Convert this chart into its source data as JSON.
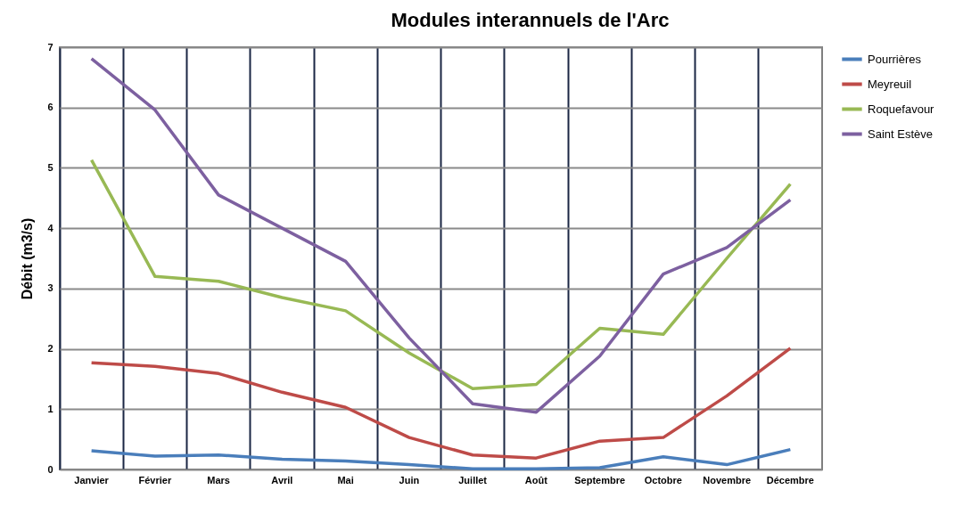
{
  "chart_data": {
    "type": "line",
    "title": "Modules interannuels de l'Arc",
    "ylabel": "Débit (m3/s)",
    "categories": [
      "Janvier",
      "Février",
      "Mars",
      "Avril",
      "Mai",
      "Juin",
      "Juillet",
      "Août",
      "Septembre",
      "Octobre",
      "Novembre",
      "Décembre"
    ],
    "series": [
      {
        "name": "Pourrières",
        "color": "#4a7ebb",
        "values": [
          0.31,
          0.22,
          0.24,
          0.17,
          0.14,
          0.08,
          0.01,
          0.01,
          0.03,
          0.21,
          0.08,
          0.33
        ]
      },
      {
        "name": "Meyreuil",
        "color": "#be4b48",
        "values": [
          1.77,
          1.71,
          1.59,
          1.28,
          1.03,
          0.53,
          0.24,
          0.19,
          0.47,
          0.53,
          1.22,
          2.01
        ]
      },
      {
        "name": "Roquefavour",
        "color": "#98b954",
        "values": [
          5.13,
          3.2,
          3.12,
          2.85,
          2.63,
          1.93,
          1.34,
          1.41,
          2.34,
          2.24,
          3.5,
          4.73
        ]
      },
      {
        "name": "Saint Estève",
        "color": "#7d60a0",
        "values": [
          6.81,
          5.96,
          4.55,
          4.0,
          3.45,
          2.18,
          1.09,
          0.95,
          1.88,
          3.24,
          3.68,
          4.47
        ]
      }
    ],
    "ylim": [
      0,
      7
    ],
    "yticks": [
      0,
      1,
      2,
      3,
      4,
      5,
      6,
      7
    ],
    "grid": true,
    "legend": "right",
    "marker": "none",
    "line_style": "solid"
  }
}
